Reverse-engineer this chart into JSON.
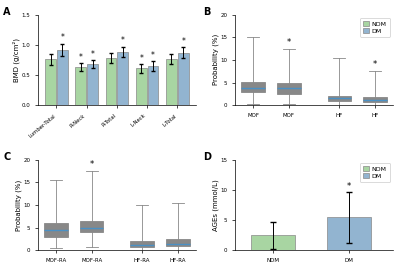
{
  "panel_A": {
    "title": "A",
    "ylabel": "BMD (g/cm²)",
    "ylim": [
      0,
      1.5
    ],
    "yticks": [
      0.0,
      0.5,
      1.0,
      1.5
    ],
    "categories": [
      "Lumber-Total",
      "R-Neck",
      "R-Total",
      "L-Neck",
      "L-Total"
    ],
    "ndm_means": [
      0.76,
      0.63,
      0.78,
      0.61,
      0.76
    ],
    "ndm_errors": [
      0.09,
      0.07,
      0.08,
      0.07,
      0.08
    ],
    "dm_means": [
      0.92,
      0.68,
      0.88,
      0.65,
      0.87
    ],
    "dm_errors": [
      0.1,
      0.07,
      0.09,
      0.08,
      0.09
    ],
    "ndm_color": "#a8d5a2",
    "dm_color": "#92b4d0",
    "has_stars_ndm": [
      false,
      true,
      false,
      true,
      false
    ],
    "has_stars_dm": [
      true,
      true,
      true,
      true,
      true
    ]
  },
  "panel_B": {
    "title": "B",
    "ylabel": "Probability (%)",
    "ylim": [
      0,
      20
    ],
    "yticks": [
      0,
      5,
      10,
      15,
      20
    ],
    "categories": [
      "MOF",
      "MOF",
      "HF",
      "HF"
    ],
    "colors": [
      "#a8d5a2",
      "#92b4d0",
      "#a8d5a2",
      "#92b4d0"
    ],
    "median_color": "#4a90c4",
    "boxes": [
      {
        "q1": 2.8,
        "median": 3.8,
        "q3": 5.2,
        "whislo": 0.3,
        "whishi": 15.0
      },
      {
        "q1": 2.5,
        "median": 3.7,
        "q3": 4.8,
        "whislo": 0.2,
        "whishi": 12.5
      },
      {
        "q1": 1.0,
        "median": 1.5,
        "q3": 2.0,
        "whislo": 0.1,
        "whishi": 10.5
      },
      {
        "q1": 0.7,
        "median": 1.1,
        "q3": 1.7,
        "whislo": 0.1,
        "whishi": 7.5
      }
    ],
    "has_stars": [
      false,
      true,
      false,
      true
    ],
    "legend_labels": [
      "NDM",
      "DM"
    ],
    "legend_colors": [
      "#a8d5a2",
      "#92b4d0"
    ]
  },
  "panel_C": {
    "title": "C",
    "ylabel": "Probability (%)",
    "ylim": [
      0,
      20
    ],
    "yticks": [
      0,
      5,
      10,
      15,
      20
    ],
    "categories": [
      "MOF-RA",
      "MOF-RA",
      "HF-RA",
      "HF-RA"
    ],
    "colors": [
      "#a8d5a2",
      "#92b4d0",
      "#a8d5a2",
      "#92b4d0"
    ],
    "median_color": "#4a90c4",
    "boxes": [
      {
        "q1": 3.0,
        "median": 4.5,
        "q3": 6.0,
        "whislo": 0.5,
        "whishi": 15.5
      },
      {
        "q1": 4.0,
        "median": 5.0,
        "q3": 6.5,
        "whislo": 0.8,
        "whishi": 17.5
      },
      {
        "q1": 0.8,
        "median": 1.3,
        "q3": 2.0,
        "whislo": 0.1,
        "whishi": 10.0
      },
      {
        "q1": 0.9,
        "median": 1.5,
        "q3": 2.5,
        "whislo": 0.2,
        "whishi": 10.5
      }
    ],
    "has_stars": [
      false,
      true,
      false,
      false
    ]
  },
  "panel_D": {
    "title": "D",
    "ylabel": "AGEs (mmol/L)",
    "ylim": [
      0,
      15
    ],
    "yticks": [
      0,
      5,
      10,
      15
    ],
    "categories": [
      "NDM",
      "DM"
    ],
    "means": [
      2.5,
      5.5
    ],
    "errors": [
      2.2,
      4.2
    ],
    "colors": [
      "#a8d5a2",
      "#92b4d0"
    ],
    "has_stars": [
      false,
      true
    ],
    "legend_labels": [
      "NDM",
      "DM"
    ],
    "legend_colors": [
      "#a8d5a2",
      "#92b4d0"
    ]
  },
  "background_color": "#ffffff"
}
